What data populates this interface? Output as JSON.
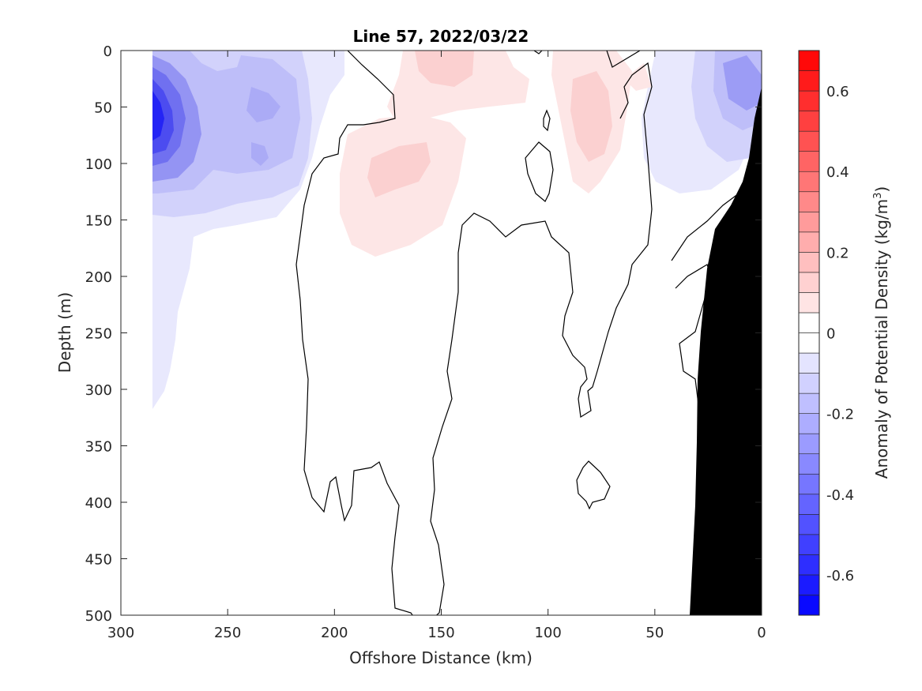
{
  "chart_data": {
    "type": "heatmap",
    "subtype": "filled-contour section",
    "title": "Line 57, 2022/03/22",
    "xlabel": "Offshore Distance (km)",
    "ylabel": "Depth (m)",
    "xlim": [
      300,
      0
    ],
    "ylim": [
      500,
      0
    ],
    "x_reversed": true,
    "y_reversed": true,
    "x_ticks": [
      300,
      250,
      200,
      150,
      100,
      50,
      0
    ],
    "y_ticks": [
      0,
      50,
      100,
      150,
      200,
      250,
      300,
      350,
      400,
      450,
      500
    ],
    "x_tick_labels": [
      "300",
      "250",
      "200",
      "150",
      "100",
      "50",
      "0"
    ],
    "y_tick_labels": [
      "0",
      "50",
      "100",
      "150",
      "200",
      "250",
      "300",
      "350",
      "400",
      "450",
      "500"
    ],
    "colorbar": {
      "label_prefix": "Anomaly of Potential Density (kg/m",
      "label_superscript": "3",
      "label_suffix": ")",
      "range": [
        -0.7,
        0.7
      ],
      "step": 0.05,
      "ticks": [
        0.6,
        0.4,
        0.2,
        0,
        -0.2,
        -0.4,
        -0.6
      ],
      "tick_labels": [
        "0.6",
        "0.4",
        "0.2",
        "0",
        "-0.2",
        "-0.4",
        "-0.6"
      ],
      "colormap": "blue-white-red diverging",
      "min_color": "#0000ff",
      "max_color": "#ff0000",
      "zero_color": "#ffffff"
    },
    "features": [
      {
        "kind": "negative anomaly",
        "center_km": 283,
        "center_depth_m": 60,
        "value": -0.6
      },
      {
        "kind": "negative anomaly",
        "center_km": 235,
        "center_depth_m": 50,
        "value": -0.2
      },
      {
        "kind": "negative anomaly",
        "center_km": 235,
        "center_depth_m": 95,
        "value": -0.2
      },
      {
        "kind": "negative anomaly",
        "center_km": 10,
        "center_depth_m": 25,
        "value": -0.3
      },
      {
        "kind": "positive anomaly",
        "center_km": 155,
        "center_depth_m": 15,
        "value": 0.15
      },
      {
        "kind": "positive anomaly",
        "center_km": 165,
        "center_depth_m": 110,
        "value": 0.15
      },
      {
        "kind": "positive anomaly",
        "center_km": 75,
        "center_depth_m": 65,
        "value": 0.15
      }
    ],
    "bathymetry_color": "#000000"
  }
}
